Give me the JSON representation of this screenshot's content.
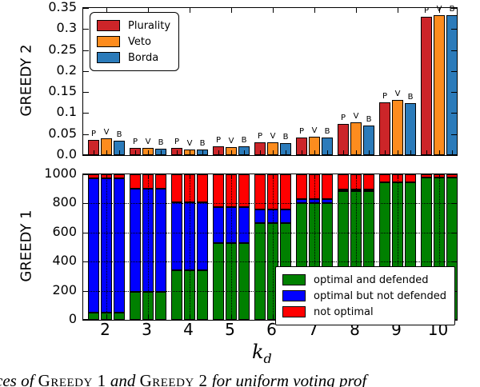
{
  "figure": {
    "xlabel": {
      "base": "k",
      "sub": "d"
    },
    "xticklabels": [
      "2",
      "3",
      "4",
      "5",
      "6",
      "7",
      "8",
      "9",
      "10"
    ],
    "caption_parts": [
      {
        "text": "ces of ",
        "style": "italic"
      },
      {
        "text": "Greedy 1",
        "style": "smallcaps"
      },
      {
        "text": " and ",
        "style": "italic"
      },
      {
        "text": "Greedy 2",
        "style": "smallcaps"
      },
      {
        "text": " for uniform voting prof",
        "style": "italic"
      }
    ]
  },
  "chart_data": [
    {
      "type": "bar",
      "title": "",
      "ylabel": "GREEDY 2",
      "ylim": [
        0,
        0.35
      ],
      "yticks": [
        "0.0",
        "0.05",
        "0.1",
        "0.15",
        "0.2",
        "0.25",
        "0.3",
        "0.35"
      ],
      "ytick_values": [
        0,
        0.05,
        0.1,
        0.15,
        0.2,
        0.25,
        0.3,
        0.35
      ],
      "categories": [
        2,
        3,
        4,
        5,
        6,
        7,
        8,
        9,
        10
      ],
      "bar_letters": [
        "P",
        "V",
        "B"
      ],
      "grid": false,
      "legend_position": "top-left",
      "series": [
        {
          "name": "Plurality",
          "color": "#cc2529",
          "values": [
            0.036,
            0.017,
            0.017,
            0.021,
            0.031,
            0.042,
            0.074,
            0.125,
            0.33
          ]
        },
        {
          "name": "Veto",
          "color": "#fd8c1e",
          "values": [
            0.04,
            0.017,
            0.014,
            0.019,
            0.031,
            0.044,
            0.078,
            0.131,
            0.333
          ]
        },
        {
          "name": "Borda",
          "color": "#2b7bba",
          "values": [
            0.035,
            0.016,
            0.014,
            0.021,
            0.029,
            0.042,
            0.07,
            0.124,
            0.333
          ]
        }
      ]
    },
    {
      "type": "stacked-bar",
      "title": "",
      "ylabel": "GREEDY 1",
      "ylim": [
        0,
        1000
      ],
      "yticks": [
        "0",
        "200",
        "400",
        "600",
        "800",
        "1000"
      ],
      "ytick_values": [
        0,
        200,
        400,
        600,
        800,
        1000
      ],
      "categories": [
        2,
        3,
        4,
        5,
        6,
        7,
        8,
        9,
        10
      ],
      "bars_per_group": 3,
      "grid": true,
      "legend_position": "bottom-right",
      "segments": [
        {
          "name": "optimal and defended",
          "color": "#008000",
          "values": [
            50,
            190,
            340,
            530,
            665,
            800,
            885,
            945,
            980
          ]
        },
        {
          "name": "optimal but not defended",
          "color": "#0000ff",
          "values": [
            925,
            710,
            470,
            245,
            95,
            30,
            10,
            0,
            0
          ]
        },
        {
          "name": "not optimal",
          "color": "#ff0000",
          "values": [
            25,
            100,
            190,
            225,
            240,
            170,
            105,
            55,
            20
          ]
        }
      ]
    }
  ]
}
